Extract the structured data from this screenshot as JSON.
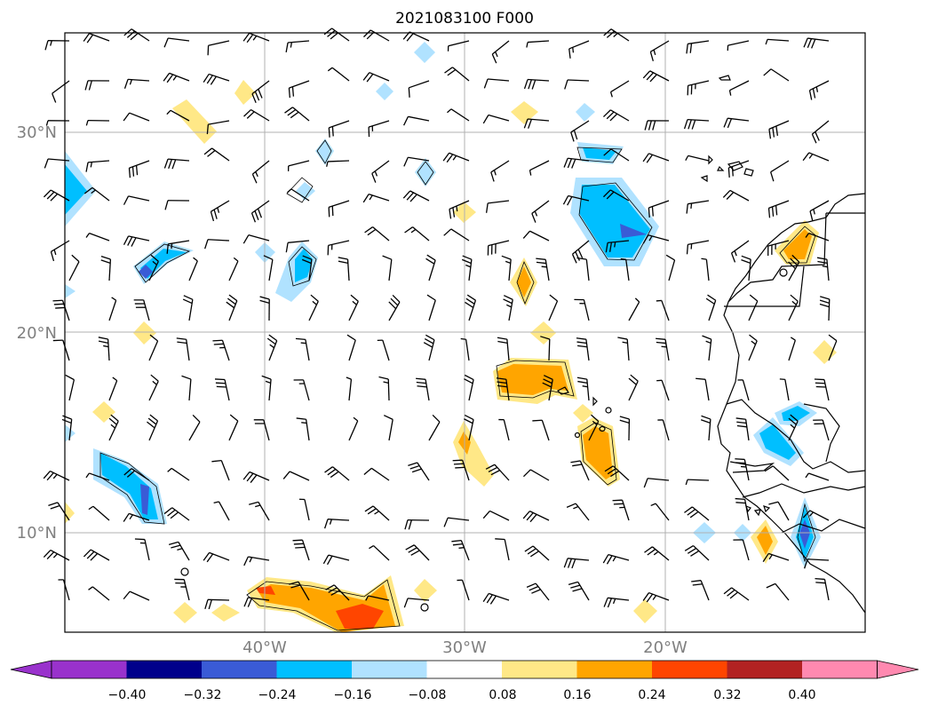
{
  "title": "2021083100 F000",
  "map": {
    "lat_labels": [
      "30°N",
      "20°N",
      "10°N"
    ],
    "lon_labels": [
      "40°W",
      "30°W",
      "20°W"
    ]
  },
  "colorbar": {
    "labels": [
      "−0.40",
      "−0.32",
      "−0.24",
      "−0.16",
      "−0.08",
      "0.08",
      "0.16",
      "0.24",
      "0.32",
      "0.40"
    ],
    "colors": [
      "#9932cc",
      "#00008b",
      "#3a5bd6",
      "#00bfff",
      "#b0e2ff",
      "#ffffff",
      "#ffe887",
      "#ffa500",
      "#ff4500",
      "#b22222",
      "#ff89b0"
    ]
  }
}
